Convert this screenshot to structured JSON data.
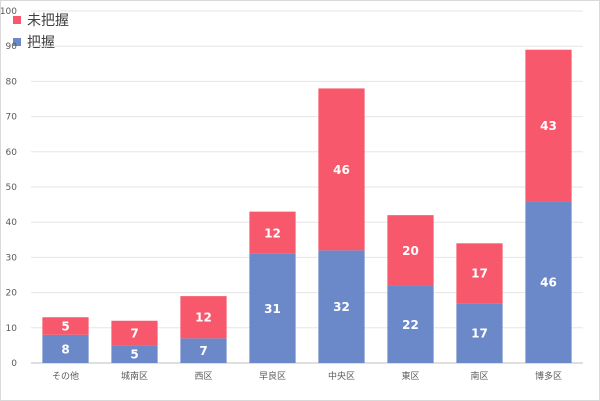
{
  "chart_data": {
    "type": "bar",
    "stacked": true,
    "categories": [
      "その他",
      "城南区",
      "西区",
      "早良区",
      "中央区",
      "東区",
      "南区",
      "博多区"
    ],
    "series": [
      {
        "name": "把握",
        "values": [
          8,
          5,
          7,
          31,
          32,
          22,
          17,
          46
        ],
        "color": "#6b88c9"
      },
      {
        "name": "未把握",
        "values": [
          5,
          7,
          12,
          12,
          46,
          20,
          17,
          43
        ],
        "color": "#f7586b"
      }
    ],
    "ylim": [
      0,
      100
    ],
    "yticks": [
      0,
      10,
      20,
      30,
      40,
      50,
      60,
      70,
      80,
      90,
      100
    ],
    "grid": true,
    "legend_position": "top-left",
    "data_labels": true
  }
}
